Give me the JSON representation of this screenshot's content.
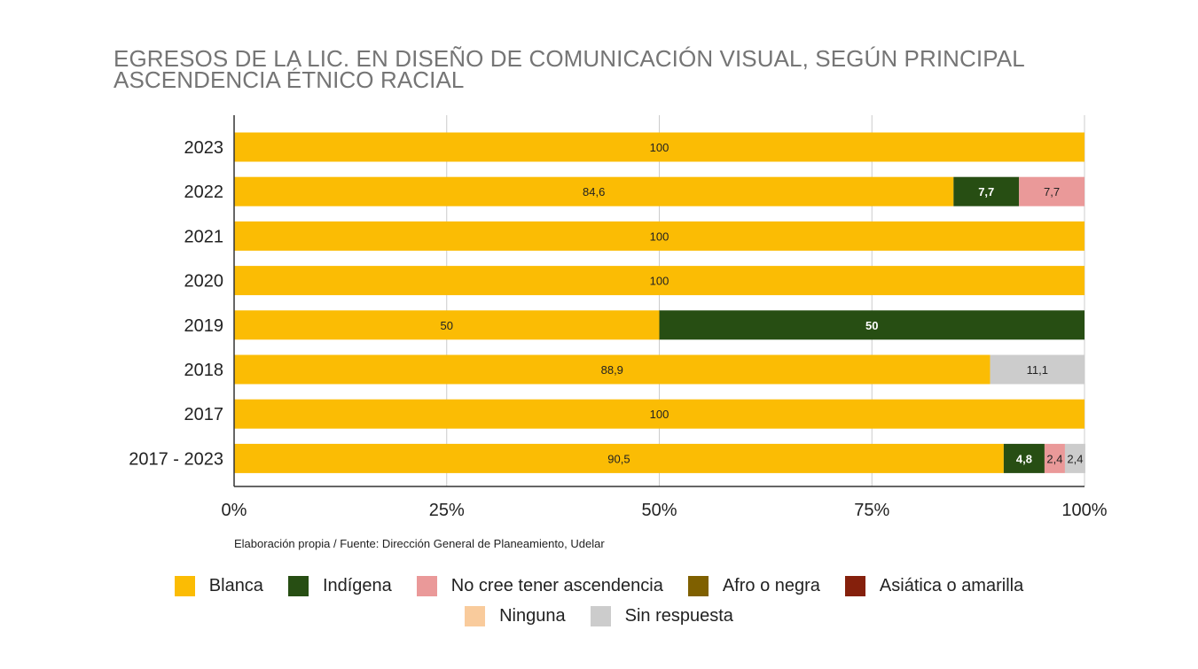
{
  "chart_data": {
    "type": "bar",
    "orientation": "horizontal",
    "stacked": "percent",
    "title": "EGRESOS DE LA LIC. EN DISEÑO DE COMUNICACIÓN VISUAL, SEGÚN PRINCIPAL ASCENDENCIA ÉTNICO RACIAL",
    "categories": [
      "2023",
      "2022",
      "2021",
      "2020",
      "2019",
      "2018",
      "2017",
      "2017 - 2023"
    ],
    "series": [
      {
        "name": "Blanca",
        "color": "#FBBC04",
        "values": [
          100,
          84.6,
          100,
          100,
          50,
          88.9,
          100,
          90.5
        ],
        "labels": [
          "100",
          "84,6",
          "100",
          "100",
          "50",
          "88,9",
          "100",
          "90,5"
        ]
      },
      {
        "name": "Indígena",
        "color": "#274E13",
        "values": [
          0,
          7.7,
          0,
          0,
          50,
          0,
          0,
          4.8
        ],
        "labels": [
          "",
          "7,7",
          "",
          "",
          "50",
          "",
          "",
          "4,8"
        ]
      },
      {
        "name": "No cree tener ascendencia",
        "color": "#EA9999",
        "values": [
          0,
          7.7,
          0,
          0,
          0,
          0,
          0,
          2.4
        ],
        "labels": [
          "",
          "7,7",
          "",
          "",
          "",
          "",
          "",
          "2,4"
        ]
      },
      {
        "name": "Afro o negra",
        "color": "#7F6000",
        "values": [
          0,
          0,
          0,
          0,
          0,
          0,
          0,
          0
        ],
        "labels": [
          "",
          "",
          "",
          "",
          "",
          "",
          "",
          ""
        ]
      },
      {
        "name": "Asiática o amarilla",
        "color": "#85200C",
        "values": [
          0,
          0,
          0,
          0,
          0,
          0,
          0,
          0
        ],
        "labels": [
          "",
          "",
          "",
          "",
          "",
          "",
          "",
          ""
        ]
      },
      {
        "name": "Ninguna",
        "color": "#F9CB9C",
        "values": [
          0,
          0,
          0,
          0,
          0,
          0,
          0,
          0
        ],
        "labels": [
          "",
          "",
          "",
          "",
          "",
          "",
          "",
          ""
        ]
      },
      {
        "name": "Sin respuesta",
        "color": "#CCCCCC",
        "values": [
          0,
          0,
          0,
          0,
          0,
          11.1,
          0,
          2.4
        ],
        "labels": [
          "",
          "",
          "",
          "",
          "",
          "11,1",
          "",
          "2,4"
        ]
      }
    ],
    "xlim": [
      0,
      100
    ],
    "x_ticks": [
      0,
      25,
      50,
      75,
      100
    ],
    "x_tick_labels": [
      "0%",
      "25%",
      "50%",
      "75%",
      "100%"
    ],
    "grid": true,
    "legend_position": "bottom",
    "source": "Elaboración propia / Fuente: Dirección General de Planeamiento, Udelar"
  }
}
